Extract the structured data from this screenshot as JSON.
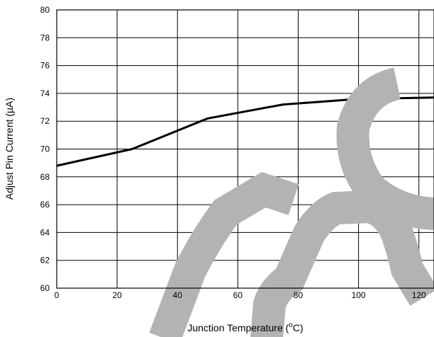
{
  "chart_data": {
    "type": "line",
    "xlabel": "Junction Temperature (°C)",
    "xlabel_parts": {
      "prefix": "Junction Temperature (",
      "superscript": "o",
      "suffix": "C)"
    },
    "ylabel": "Adjust Pin Current (µA)",
    "xlim": [
      0,
      125
    ],
    "ylim": [
      60,
      80
    ],
    "x_ticks": [
      0,
      20,
      40,
      60,
      80,
      100,
      120
    ],
    "y_ticks": [
      60,
      62,
      64,
      66,
      68,
      70,
      72,
      74,
      76,
      78,
      80
    ],
    "grid": true,
    "series": [
      {
        "x": [
          0,
          25,
          50,
          75,
          100,
          125
        ],
        "y": [
          68.8,
          70.0,
          72.2,
          73.2,
          73.6,
          73.7
        ]
      }
    ]
  }
}
